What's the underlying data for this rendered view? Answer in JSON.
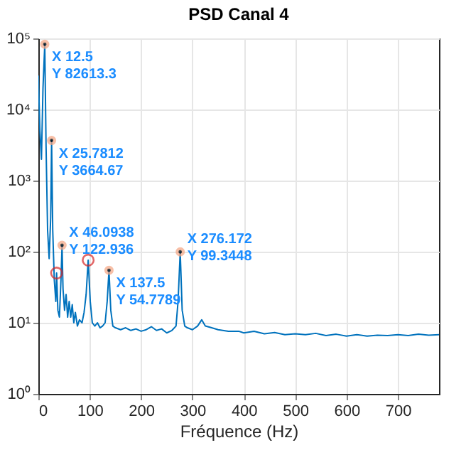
{
  "chart_data": {
    "type": "line",
    "title": "PSD Canal 4",
    "xlabel": "Fréquence (Hz)",
    "xlim": [
      0,
      780
    ],
    "xticks": [
      0,
      100,
      200,
      300,
      400,
      500,
      600,
      700
    ],
    "ylim": [
      1,
      100000
    ],
    "yticks": [
      {
        "value": 1,
        "label": "10⁰"
      },
      {
        "value": 10,
        "label": "10¹"
      },
      {
        "value": 100,
        "label": "10²"
      },
      {
        "value": 1000,
        "label": "10³"
      },
      {
        "value": 10000,
        "label": "10⁴"
      },
      {
        "value": 100000,
        "label": "10⁵"
      }
    ],
    "log": "y",
    "grid": true,
    "series": [
      {
        "color": "#0072bd",
        "x": [
          0,
          3,
          6,
          9,
          12.5,
          15,
          18,
          21,
          24,
          25.7812,
          28,
          31,
          34,
          35.5,
          38,
          41,
          44,
          46.0938,
          48,
          51,
          54,
          57,
          60,
          63,
          66,
          69,
          72,
          76,
          80,
          85,
          89,
          93,
          97,
          101,
          105,
          110,
          115,
          120,
          125,
          130,
          134,
          137.5,
          141,
          145,
          150,
          160,
          170,
          180,
          190,
          200,
          210,
          220,
          230,
          240,
          250,
          260,
          268,
          272,
          276.172,
          280,
          285,
          290,
          300,
          310,
          318,
          325,
          335,
          350,
          370,
          390,
          400,
          420,
          440,
          460,
          480,
          500,
          520,
          540,
          560,
          580,
          600,
          620,
          640,
          660,
          680,
          700,
          720,
          740,
          760,
          780
        ],
        "values": [
          30000,
          5000,
          2000,
          20000,
          82613.3,
          3000,
          200,
          80,
          300,
          3664.67,
          200,
          40,
          20,
          50,
          15,
          12,
          40,
          122.936,
          30,
          15,
          25,
          12,
          20,
          12,
          18,
          10,
          14,
          9,
          11,
          10,
          14,
          25,
          76,
          20,
          10,
          9,
          10,
          8.5,
          9,
          10,
          20,
          54.7789,
          15,
          9,
          8.5,
          8,
          8.5,
          7.8,
          8.2,
          7.6,
          8,
          8.8,
          7.8,
          8.2,
          7.2,
          7.8,
          9,
          20,
          99.3448,
          15,
          9,
          8.5,
          8,
          9,
          11,
          9,
          8.6,
          8,
          7.6,
          7.6,
          7.2,
          7.6,
          7,
          7.3,
          6.8,
          7,
          6.8,
          7.1,
          6.6,
          6.9,
          6.5,
          6.8,
          6.5,
          6.7,
          6.6,
          6.8,
          6.6,
          6.9,
          6.7,
          6.8
        ]
      },
      {
        "type": "scatter",
        "color": "#d62728",
        "x": [
          35.5,
          97
        ],
        "values": [
          50,
          76
        ]
      }
    ],
    "annotations": [
      {
        "text": "X 12.5\nY 82613.3",
        "x": 12.5,
        "y": 82613.3
      },
      {
        "text": "X 25.7812\nY 3664.67",
        "x": 25.7812,
        "y": 3664.67
      },
      {
        "text": "X 46.0938\nY 122.936",
        "x": 46.0938,
        "y": 122.936
      },
      {
        "text": "X 137.5\nY 54.7789",
        "x": 137.5,
        "y": 54.7789
      },
      {
        "text": "X 276.172\nY 99.3448",
        "x": 276.172,
        "y": 99.3448
      }
    ]
  }
}
